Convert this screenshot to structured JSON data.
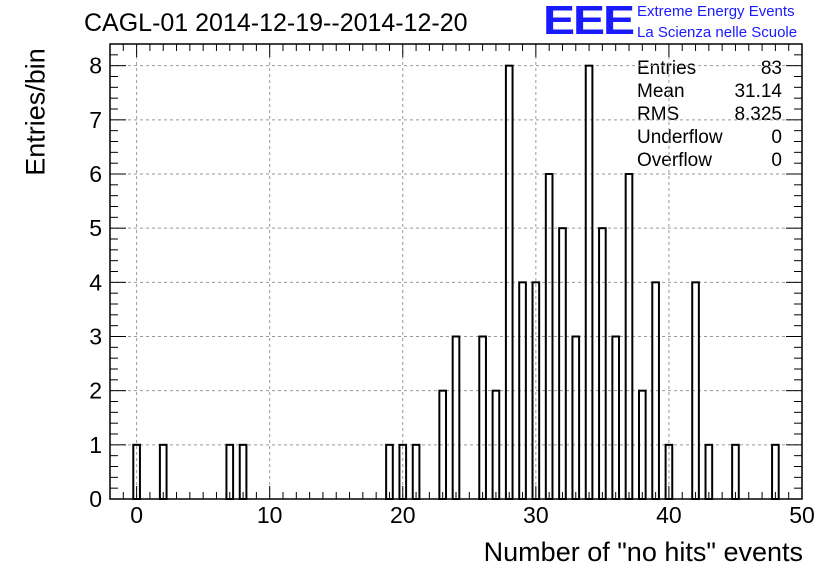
{
  "title": "CAGL-01 2014-12-19--2014-12-20",
  "logo": {
    "mark": "EEE",
    "line1": "Extreme Energy Events",
    "line2": "La Scienza nelle Scuole",
    "color": "#1a1aff"
  },
  "stats": [
    {
      "label": "Entries",
      "value": "83"
    },
    {
      "label": "Mean",
      "value": "31.14"
    },
    {
      "label": "RMS",
      "value": "8.325"
    },
    {
      "label": "Underflow",
      "value": "0"
    },
    {
      "label": "Overflow",
      "value": "0"
    }
  ],
  "chart_data": {
    "type": "bar",
    "style": "step-histogram",
    "title": "CAGL-01 2014-12-19--2014-12-20",
    "xlabel": "Number of \"no hits\" events",
    "ylabel": "Entries/bin",
    "xlim": [
      -2,
      50
    ],
    "ylim": [
      0,
      8.4
    ],
    "bin_width": 0.5,
    "x_ticks": [
      0,
      10,
      20,
      30,
      40,
      50
    ],
    "y_ticks": [
      0,
      1,
      2,
      3,
      4,
      5,
      6,
      7,
      8
    ],
    "grid": true,
    "bins": [
      {
        "x": 0,
        "count": 1
      },
      {
        "x": 2,
        "count": 1
      },
      {
        "x": 7,
        "count": 1
      },
      {
        "x": 8,
        "count": 1
      },
      {
        "x": 19,
        "count": 1
      },
      {
        "x": 20,
        "count": 1
      },
      {
        "x": 21,
        "count": 1
      },
      {
        "x": 23,
        "count": 2
      },
      {
        "x": 24,
        "count": 3
      },
      {
        "x": 26,
        "count": 3
      },
      {
        "x": 27,
        "count": 2
      },
      {
        "x": 28,
        "count": 8
      },
      {
        "x": 29,
        "count": 4
      },
      {
        "x": 30,
        "count": 4
      },
      {
        "x": 31,
        "count": 6
      },
      {
        "x": 32,
        "count": 5
      },
      {
        "x": 33,
        "count": 3
      },
      {
        "x": 34,
        "count": 8
      },
      {
        "x": 35,
        "count": 5
      },
      {
        "x": 36,
        "count": 3
      },
      {
        "x": 37,
        "count": 6
      },
      {
        "x": 38,
        "count": 2
      },
      {
        "x": 39,
        "count": 4
      },
      {
        "x": 40,
        "count": 1
      },
      {
        "x": 42,
        "count": 4
      },
      {
        "x": 43,
        "count": 1
      },
      {
        "x": 45,
        "count": 1
      },
      {
        "x": 48,
        "count": 1
      }
    ]
  }
}
